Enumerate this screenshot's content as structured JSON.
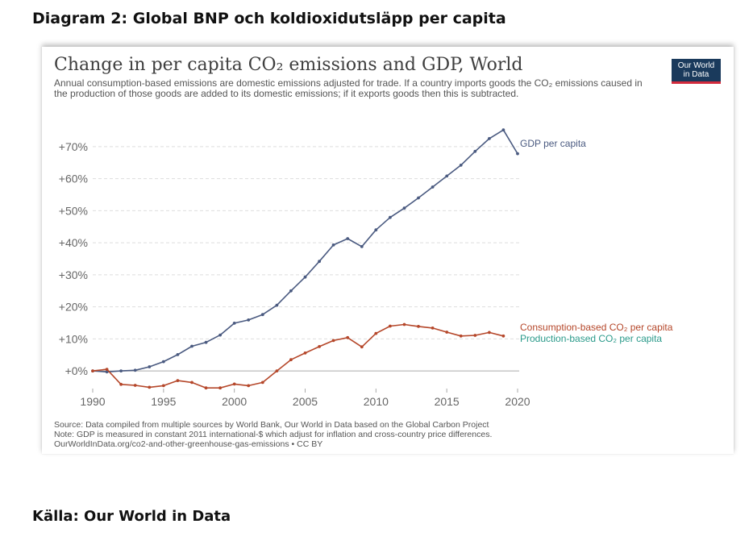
{
  "page": {
    "heading": "Diagram 2: Global BNP och koldioxidutsläpp per capita",
    "source": "Källa: Our World in Data"
  },
  "logo": {
    "line1": "Our World",
    "line2": "in Data",
    "color": "#1a3a5c",
    "accent": "#d42b3c"
  },
  "chart_data": {
    "type": "line",
    "title": "Change in per capita CO₂ emissions and GDP, World",
    "subtitle": "Annual consumption-based emissions are domestic emissions adjusted for trade. If a country imports goods the CO₂ emissions caused in the production of those goods are added to its domestic emissions; if it exports goods then this is subtracted.",
    "xlim": [
      1990,
      2020
    ],
    "ylim": [
      -5,
      75
    ],
    "y_ticks": [
      0,
      10,
      20,
      30,
      40,
      50,
      60,
      70
    ],
    "y_tick_labels": [
      "+0%",
      "+10%",
      "+20%",
      "+30%",
      "+40%",
      "+50%",
      "+60%",
      "+70%"
    ],
    "x_ticks": [
      1990,
      1995,
      2000,
      2005,
      2010,
      2015,
      2020
    ],
    "x_tick_labels": [
      "1990",
      "1995",
      "2000",
      "2005",
      "2010",
      "2015",
      "2020"
    ],
    "grid": "horizontal dashed",
    "series": [
      {
        "name": "GDP per capita",
        "color": "#4a5a80",
        "x": [
          1990,
          1991,
          1992,
          1993,
          1994,
          1995,
          1996,
          1997,
          1998,
          1999,
          2000,
          2001,
          2002,
          2003,
          2004,
          2005,
          2006,
          2007,
          2008,
          2009,
          2010,
          2011,
          2012,
          2013,
          2014,
          2015,
          2016,
          2017,
          2018,
          2019,
          2020
        ],
        "values": [
          0,
          -0.3,
          0,
          0.2,
          1.3,
          2.9,
          5.1,
          7.7,
          8.9,
          11.2,
          14.9,
          15.9,
          17.6,
          20.5,
          25,
          29.3,
          34.2,
          39.3,
          41.3,
          38.8,
          44,
          47.9,
          50.8,
          54,
          57.4,
          60.8,
          64.2,
          68.5,
          72.5,
          75.2,
          67.8
        ]
      },
      {
        "name": "Consumption-based CO₂ per capita",
        "color": "#b5472a",
        "x": [
          1990,
          1991,
          1992,
          1993,
          1994,
          1995,
          1996,
          1997,
          1998,
          1999,
          2000,
          2001,
          2002,
          2003,
          2004,
          2005,
          2006,
          2007,
          2008,
          2009,
          2010,
          2011,
          2012,
          2013,
          2014,
          2015,
          2016,
          2017,
          2018,
          2019,
          2020
        ],
        "values": [
          0,
          0.5,
          -4.2,
          -4.5,
          -5.1,
          -4.6,
          -3,
          -3.6,
          -5.3,
          -5.3,
          -4.1,
          -4.6,
          -3.6,
          0,
          3.5,
          5.6,
          7.6,
          9.5,
          10.4,
          7.5,
          11.7,
          14,
          14.5,
          13.9,
          13.4,
          12.1,
          10.9,
          11.1,
          12,
          10.9,
          null
        ]
      },
      {
        "name": "Production-based CO₂ per capita",
        "color": "#2a9a8a",
        "x": [],
        "values": []
      }
    ]
  },
  "footer": {
    "source_note": "Source: Data compiled from multiple sources by World Bank, Our World in Data based on the Global Carbon Project",
    "gdp_note": "Note: GDP is measured in constant 2011 international-$ which adjust for inflation and cross-country price differences.",
    "url_note": "OurWorldInData.org/co2-and-other-greenhouse-gas-emissions • CC BY"
  }
}
